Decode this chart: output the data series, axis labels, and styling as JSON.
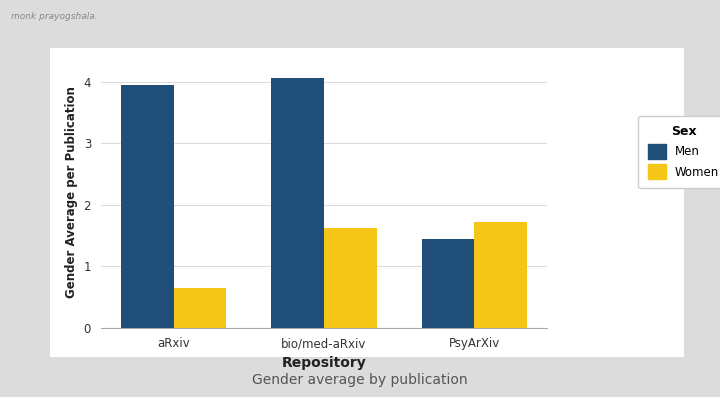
{
  "categories": [
    "aRxiv",
    "bio/med-aRxiv",
    "PsyArXiv"
  ],
  "men_values": [
    3.95,
    4.07,
    1.45
  ],
  "women_values": [
    0.65,
    1.62,
    1.72
  ],
  "men_color": "#1F4E79",
  "women_color": "#F5C518",
  "xlabel": "Repository",
  "ylabel": "Gender Average per Publication",
  "legend_title": "Sex",
  "legend_labels": [
    "Men",
    "Women"
  ],
  "title": "Gender average by publication",
  "ylim": [
    0,
    4.4
  ],
  "yticks": [
    0,
    1,
    2,
    3,
    4
  ],
  "bar_width": 0.35,
  "plot_bg": "#FFFFFF",
  "outer_bg": "#DCDCDC",
  "grid_color": "#DDDDDD",
  "panel_bg": "#FFFFFF"
}
